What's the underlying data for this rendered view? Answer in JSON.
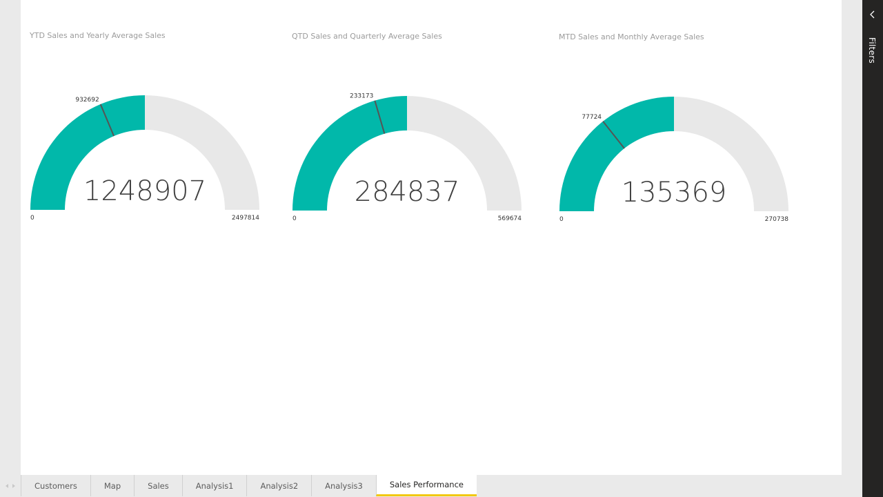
{
  "filters_pane": {
    "label": "Filters",
    "collapse_icon": "chevron-left-icon"
  },
  "tabs": [
    {
      "label": "Customers",
      "active": false
    },
    {
      "label": "Map",
      "active": false
    },
    {
      "label": "Sales",
      "active": false
    },
    {
      "label": "Analysis1",
      "active": false
    },
    {
      "label": "Analysis2",
      "active": false
    },
    {
      "label": "Analysis3",
      "active": false
    },
    {
      "label": "Sales Performance",
      "active": true
    }
  ],
  "colors": {
    "fill": "#01b8aa",
    "track": "#e8e8e8",
    "target": "#555555",
    "active_tab": "#f2c811"
  },
  "chart_data": [
    {
      "type": "gauge",
      "title": "YTD Sales and Yearly Average Sales",
      "value": 1248907,
      "value_label": "1248907",
      "min": 0,
      "min_label": "0",
      "max": 2497814,
      "max_label": "2497814",
      "target": 932692,
      "target_label": "932692"
    },
    {
      "type": "gauge",
      "title": "QTD Sales and Quarterly Average Sales",
      "value": 284837,
      "value_label": "284837",
      "min": 0,
      "min_label": "0",
      "max": 569674,
      "max_label": "569674",
      "target": 233173,
      "target_label": "233173"
    },
    {
      "type": "gauge",
      "title": "MTD Sales and Monthly Average Sales",
      "value": 135369,
      "value_label": "135369",
      "min": 0,
      "min_label": "0",
      "max": 270738,
      "max_label": "270738",
      "target": 77724,
      "target_label": "77724"
    }
  ]
}
